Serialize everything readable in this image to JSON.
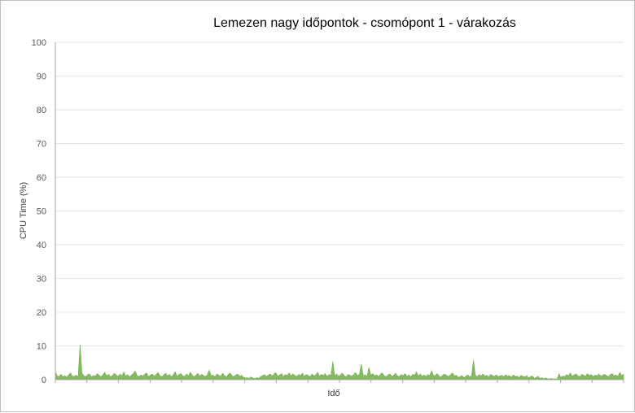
{
  "chart_data": {
    "type": "area",
    "title": "Lemezen nagy időpontok - csomópont 1 - várakozás",
    "xlabel": "Idő",
    "ylabel": "CPU Time (%)",
    "ylim": [
      0,
      100
    ],
    "yticks": [
      0,
      10,
      20,
      30,
      40,
      50,
      60,
      70,
      80,
      90,
      100
    ],
    "grid": true,
    "legend": "none",
    "series": [
      {
        "color": "#70ad47",
        "values": [
          2.4,
          1.1,
          0.9,
          1.6,
          0.8,
          1.2,
          0.7,
          1.4,
          2.0,
          0.9,
          1.1,
          1.3,
          0.8,
          10.4,
          1.9,
          1.2,
          0.9,
          1.5,
          1.7,
          0.8,
          1.2,
          1.0,
          1.8,
          1.3,
          0.9,
          1.4,
          2.2,
          1.1,
          1.6,
          0.8,
          1.2,
          1.9,
          1.4,
          0.9,
          1.7,
          1.1,
          2.3,
          1.0,
          1.5,
          0.8,
          1.3,
          1.8,
          2.6,
          1.2,
          0.9,
          1.4,
          1.1,
          1.6,
          2.0,
          0.9,
          1.3,
          1.7,
          1.0,
          1.5,
          2.1,
          1.2,
          0.8,
          1.4,
          1.9,
          1.1,
          1.6,
          0.9,
          1.3,
          2.4,
          1.0,
          1.5,
          1.8,
          1.2,
          0.9,
          1.7,
          1.1,
          2.2,
          1.4,
          0.8,
          1.3,
          1.9,
          1.0,
          1.6,
          1.2,
          0.9,
          1.5,
          2.8,
          1.1,
          1.4,
          0.8,
          1.7,
          1.3,
          1.0,
          1.9,
          1.2,
          0.8,
          1.5,
          2.0,
          1.1,
          0.9,
          1.4,
          1.6,
          1.0,
          1.3,
          0.7,
          0.5,
          0.6,
          0.4,
          0.8,
          0.5,
          0.3,
          0.6,
          0.4,
          0.9,
          1.2,
          1.5,
          0.9,
          1.3,
          1.7,
          1.1,
          1.6,
          2.1,
          1.0,
          1.4,
          1.8,
          0.9,
          1.5,
          1.2,
          2.0,
          1.1,
          1.7,
          1.3,
          0.9,
          1.6,
          1.2,
          1.9,
          1.0,
          1.5,
          1.3,
          0.8,
          1.7,
          1.1,
          1.4,
          2.2,
          1.0,
          1.6,
          1.2,
          1.8,
          0.9,
          1.5,
          1.3,
          5.4,
          1.1,
          1.7,
          1.0,
          1.4,
          1.9,
          1.2,
          0.8,
          1.6,
          1.3,
          1.0,
          1.5,
          2.1,
          1.1,
          1.7,
          4.7,
          1.2,
          1.4,
          1.0,
          3.6,
          1.3,
          1.8,
          1.1,
          1.5,
          0.9,
          1.6,
          2.0,
          1.2,
          0.8,
          1.4,
          1.7,
          1.0,
          1.3,
          1.9,
          1.1,
          0.9,
          1.5,
          1.2,
          1.8,
          1.0,
          1.4,
          0.8,
          1.6,
          1.3,
          2.3,
          1.1,
          1.7,
          1.0,
          1.4,
          0.9,
          1.5,
          1.2,
          2.7,
          1.1,
          1.3,
          1.8,
          1.0,
          0.8,
          1.4,
          1.6,
          1.2,
          0.9,
          1.5,
          2.0,
          1.1,
          1.3,
          0.7,
          0.9,
          1.2,
          0.6,
          1.0,
          1.4,
          0.8,
          1.1,
          5.8,
          1.3,
          0.9,
          1.5,
          1.1,
          1.7,
          1.0,
          1.3,
          0.8,
          1.6,
          1.2,
          1.0,
          1.4,
          0.9,
          1.1,
          1.3,
          0.8,
          1.5,
          1.0,
          1.2,
          0.7,
          1.4,
          0.9,
          1.1,
          0.6,
          1.3,
          1.0,
          0.8,
          1.2,
          0.5,
          0.9,
          1.1,
          0.4,
          0.7,
          1.0,
          0.3,
          0.6,
          0.2,
          0.5,
          0.3,
          0.2,
          0.4,
          0.1,
          0.3,
          0.2,
          1.8,
          0.6,
          1.1,
          0.9,
          1.5,
          1.2,
          2.0,
          1.0,
          1.4,
          1.7,
          1.1,
          0.9,
          1.6,
          1.3,
          1.0,
          1.8,
          1.2,
          1.5,
          0.9,
          1.4,
          1.1,
          1.7,
          1.0,
          1.3,
          1.6,
          1.2,
          0.9,
          1.5,
          1.8,
          1.1,
          1.4,
          1.0,
          2.1,
          1.2,
          1.6
        ]
      }
    ]
  }
}
